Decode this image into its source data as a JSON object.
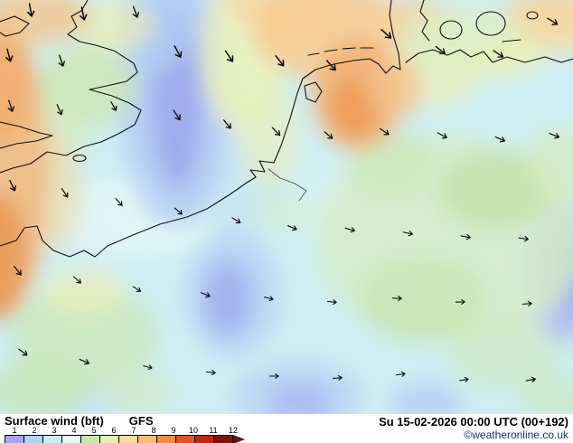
{
  "map": {
    "label": "surface-wind-map-europe",
    "arrow_color": "#0a0a0a",
    "arrows": [
      [
        34,
        12,
        80,
        1
      ],
      [
        92,
        16,
        78,
        1
      ],
      [
        150,
        14,
        70,
        0.9
      ],
      [
        10,
        62,
        75,
        1
      ],
      [
        68,
        68,
        72,
        0.9
      ],
      [
        197,
        58,
        62,
        1
      ],
      [
        254,
        63,
        56,
        1
      ],
      [
        310,
        68,
        52,
        1
      ],
      [
        367,
        73,
        48,
        1
      ],
      [
        428,
        38,
        42,
        1
      ],
      [
        488,
        56,
        38,
        0.9
      ],
      [
        552,
        60,
        34,
        0.9
      ],
      [
        612,
        24,
        32,
        0.9
      ],
      [
        12,
        118,
        72,
        0.9
      ],
      [
        66,
        122,
        66,
        0.85
      ],
      [
        126,
        118,
        60,
        0.8
      ],
      [
        196,
        128,
        56,
        0.9
      ],
      [
        252,
        138,
        50,
        0.85
      ],
      [
        306,
        146,
        46,
        0.85
      ],
      [
        364,
        150,
        40,
        0.8
      ],
      [
        426,
        146,
        34,
        0.8
      ],
      [
        490,
        150,
        28,
        0.8
      ],
      [
        554,
        154,
        24,
        0.8
      ],
      [
        614,
        150,
        22,
        0.8
      ],
      [
        14,
        206,
        64,
        0.9
      ],
      [
        72,
        214,
        56,
        0.8
      ],
      [
        132,
        224,
        48,
        0.75
      ],
      [
        198,
        234,
        40,
        0.75
      ],
      [
        262,
        244,
        32,
        0.75
      ],
      [
        324,
        252,
        24,
        0.75
      ],
      [
        388,
        254,
        16,
        0.75
      ],
      [
        452,
        258,
        12,
        0.75
      ],
      [
        516,
        262,
        10,
        0.75
      ],
      [
        580,
        264,
        8,
        0.75
      ],
      [
        20,
        300,
        52,
        0.85
      ],
      [
        86,
        310,
        42,
        0.75
      ],
      [
        152,
        320,
        32,
        0.7
      ],
      [
        228,
        326,
        22,
        0.75
      ],
      [
        298,
        330,
        14,
        0.7
      ],
      [
        368,
        334,
        6,
        0.7
      ],
      [
        440,
        330,
        2,
        0.7
      ],
      [
        510,
        334,
        -2,
        0.7
      ],
      [
        584,
        336,
        -4,
        0.7
      ],
      [
        26,
        390,
        36,
        0.8
      ],
      [
        94,
        400,
        24,
        0.8
      ],
      [
        164,
        406,
        14,
        0.7
      ],
      [
        234,
        412,
        6,
        0.7
      ],
      [
        304,
        416,
        0,
        0.7
      ],
      [
        374,
        418,
        -6,
        0.7
      ],
      [
        444,
        414,
        -8,
        0.7
      ],
      [
        514,
        420,
        -10,
        0.7
      ],
      [
        588,
        420,
        -10,
        0.75
      ]
    ]
  },
  "footer": {
    "param_label": "Surface wind (bft)",
    "model_label": "GFS",
    "datetime_label": "Su 15-02-2026 00:00 UTC (00+192)",
    "copyright_label": "©weatheronline.co.uk",
    "copyright_color": "#202a7c",
    "legend": {
      "ticks": [
        "1",
        "2",
        "3",
        "4",
        "5",
        "6",
        "7",
        "8",
        "9",
        "10",
        "11",
        "12"
      ],
      "colors": [
        "#a2a8f6",
        "#aed4f6",
        "#c8eef4",
        "#e6f8f0",
        "#c8e8b0",
        "#e6f0b0",
        "#f8dca0",
        "#f8bc74",
        "#f08c44",
        "#e05424",
        "#bc2814",
        "#7c1408"
      ],
      "arrow_color": "#6b1105"
    }
  }
}
